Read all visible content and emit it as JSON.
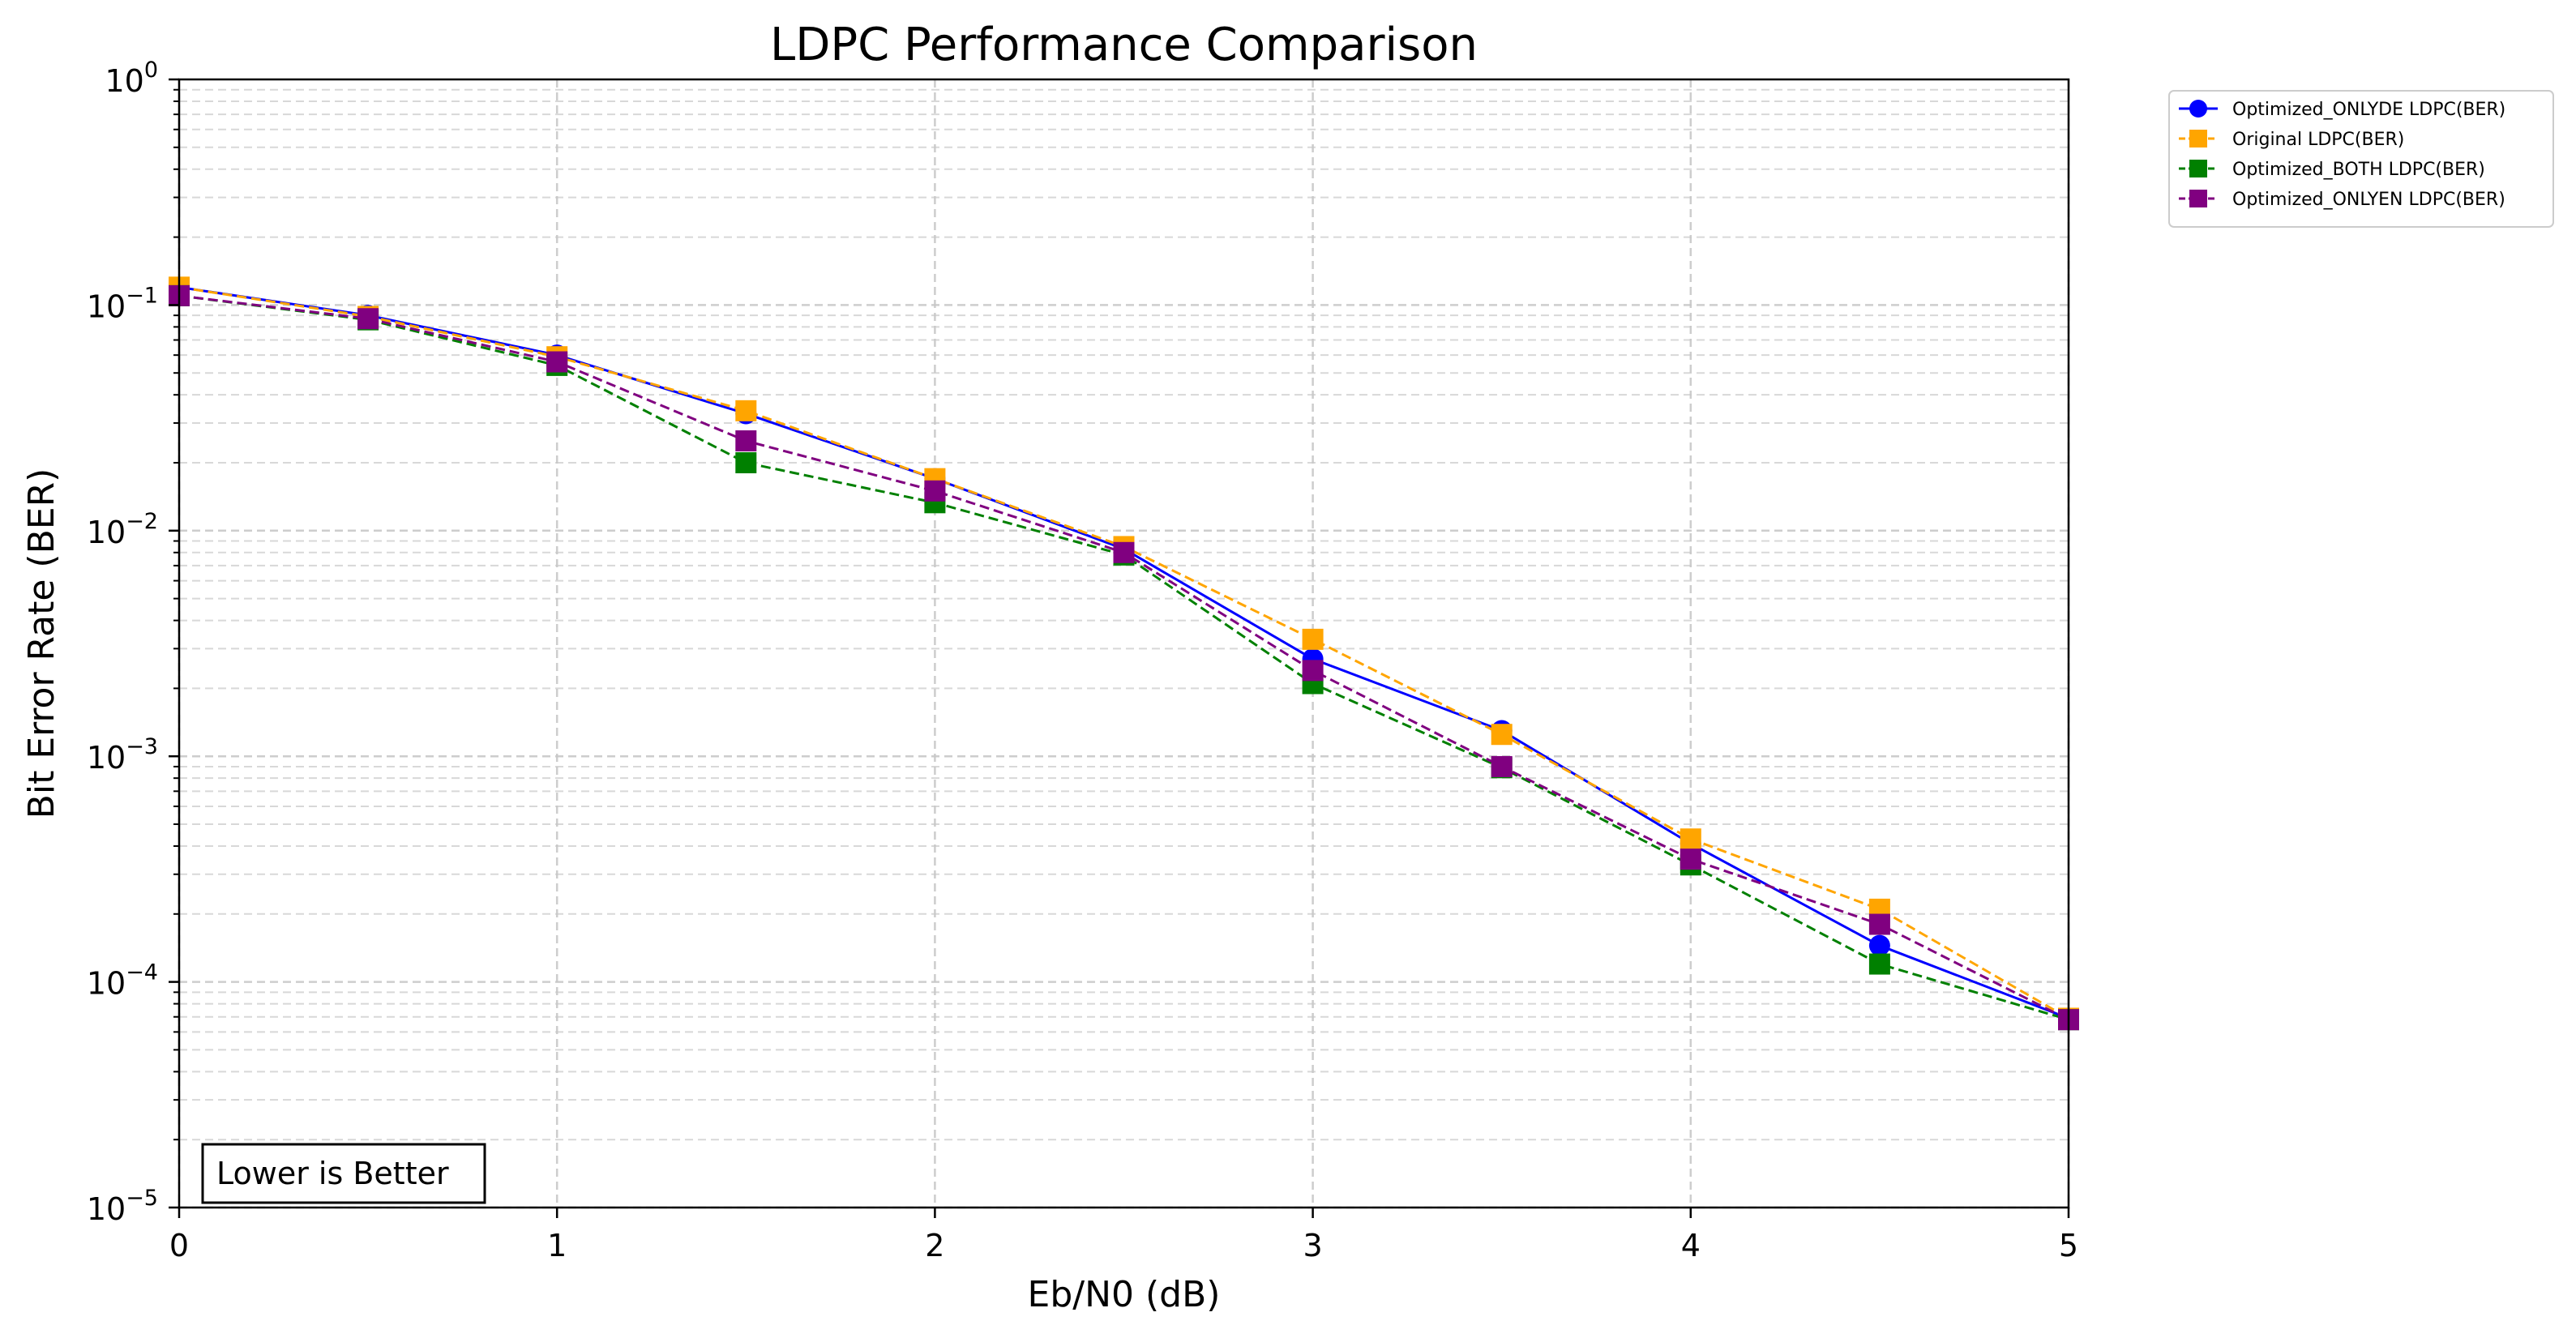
{
  "chart_data": {
    "type": "line",
    "title": "LDPC Performance Comparison",
    "xlabel": "Eb/N0 (dB)",
    "ylabel": "Bit Error Rate (BER)",
    "xlim": [
      0,
      5
    ],
    "ylim": [
      1e-05,
      1
    ],
    "yscale": "log",
    "grid": true,
    "legend_position": "outside top-right",
    "annotation": "Lower is Better",
    "x_ticks": [
      0,
      1,
      2,
      3,
      4,
      5
    ],
    "y_tick_exponents": [
      -5,
      -4,
      -3,
      -2,
      -1,
      0
    ],
    "x": [
      0,
      0.5,
      1,
      1.5,
      2,
      2.5,
      3,
      3.5,
      4,
      4.5,
      5
    ],
    "series": [
      {
        "name": "Optimized_ONLYDE LDPC(BER)",
        "color": "#0000ff",
        "marker": "circle",
        "line_style": "solid",
        "values": [
          0.12,
          0.09,
          0.06,
          0.033,
          0.017,
          0.0083,
          0.0027,
          0.0013,
          0.00041,
          0.000145,
          6.9e-05
        ]
      },
      {
        "name": "Original LDPC(BER)",
        "color": "#ffa500",
        "marker": "square",
        "line_style": "dashed",
        "values": [
          0.12,
          0.089,
          0.059,
          0.034,
          0.017,
          0.0085,
          0.0033,
          0.00125,
          0.00043,
          0.00021,
          6.9e-05
        ]
      },
      {
        "name": "Optimized_BOTH LDPC(BER)",
        "color": "#008000",
        "marker": "square",
        "line_style": "dashed",
        "values": [
          0.11,
          0.086,
          0.054,
          0.02,
          0.0133,
          0.0078,
          0.0021,
          0.00089,
          0.00033,
          0.00012,
          6.8e-05
        ]
      },
      {
        "name": "Optimized_ONLYEN LDPC(BER)",
        "color": "#800080",
        "marker": "square",
        "line_style": "dashed",
        "values": [
          0.11,
          0.087,
          0.056,
          0.025,
          0.015,
          0.008,
          0.0024,
          0.0009,
          0.00035,
          0.00018,
          6.8e-05
        ]
      }
    ]
  }
}
